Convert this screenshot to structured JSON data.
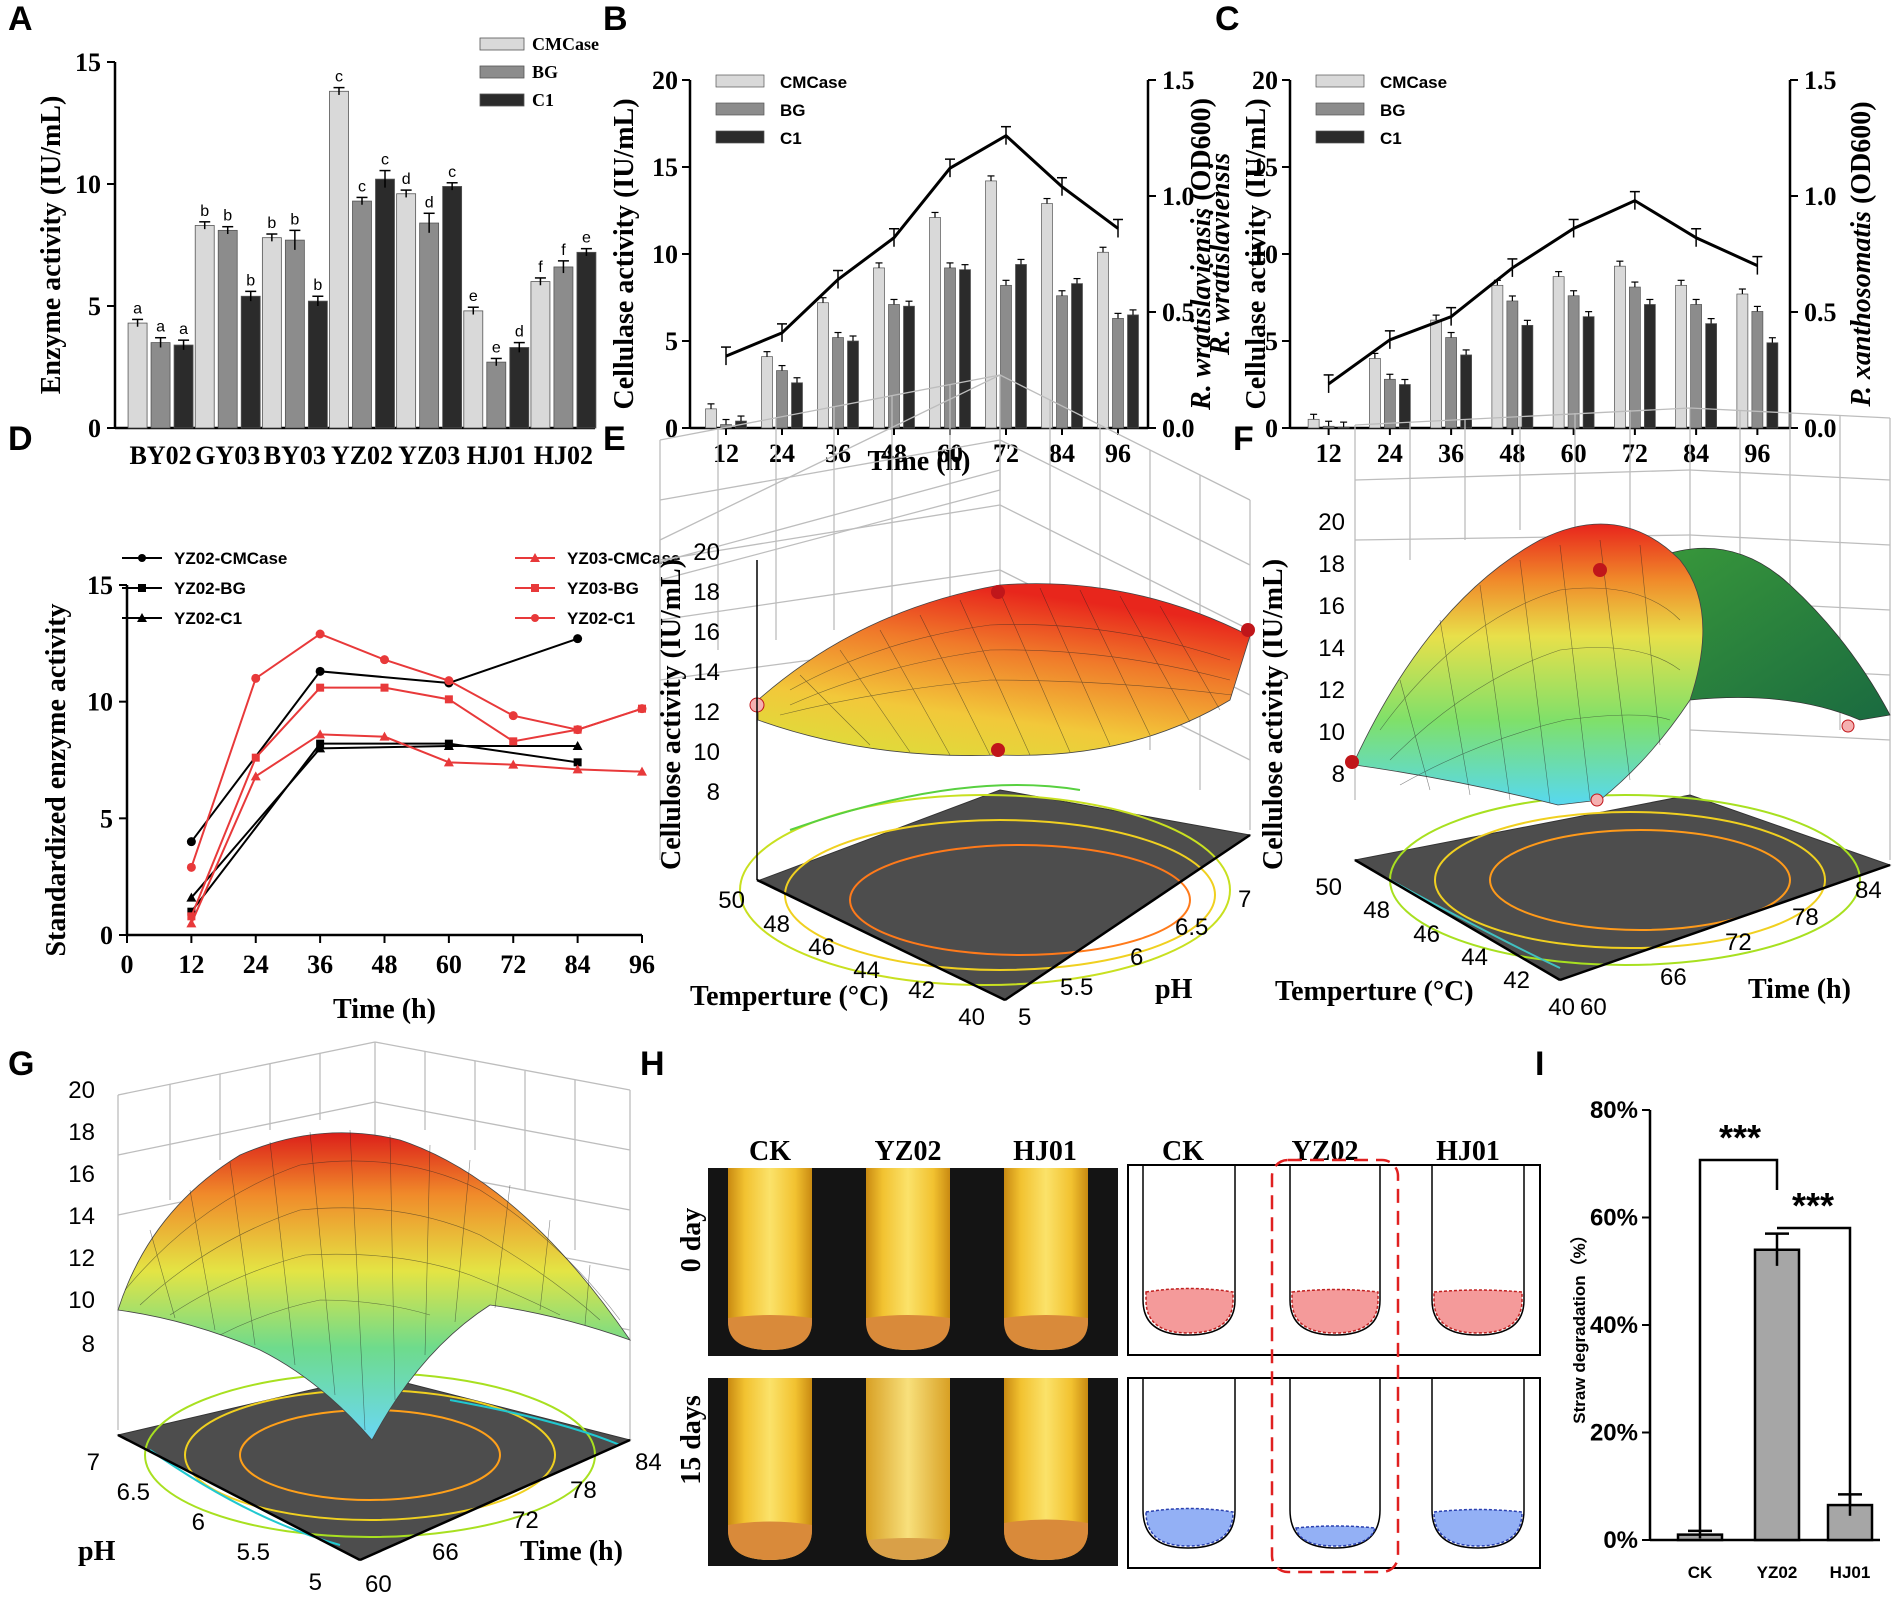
{
  "panels": {
    "A": "A",
    "B": "B",
    "C": "C",
    "D": "D",
    "E": "E",
    "F": "F",
    "G": "G",
    "H": "H",
    "I": "I"
  },
  "colors": {
    "cmcase": "#d9d9d9",
    "bg": "#8c8c8c",
    "c1": "#2b2b2b",
    "red": "#e8393a",
    "black": "#000000"
  },
  "chart_data": [
    {
      "id": "A",
      "type": "bar",
      "ylabel": "Enzyme activity (IU/mL)",
      "ylim": [
        0,
        15
      ],
      "yticks": [
        0,
        5,
        10,
        15
      ],
      "categories": [
        "BY02",
        "GY03",
        "BY03",
        "YZ02",
        "YZ03",
        "HJ01",
        "HJ02"
      ],
      "legend": [
        "CMCase",
        "BG",
        "C1"
      ],
      "series": [
        {
          "name": "CMCase",
          "values": [
            4.3,
            8.3,
            7.8,
            13.8,
            9.6,
            4.8,
            6.0
          ],
          "errors": [
            0.15,
            0.15,
            0.15,
            0.15,
            0.15,
            0.15,
            0.15
          ],
          "letters": [
            "a",
            "b",
            "b",
            "c",
            "d",
            "e",
            "f"
          ]
        },
        {
          "name": "BG",
          "values": [
            3.5,
            8.1,
            7.7,
            9.3,
            8.4,
            2.7,
            6.6
          ],
          "errors": [
            0.2,
            0.15,
            0.4,
            0.15,
            0.4,
            0.15,
            0.25
          ],
          "letters": [
            "a",
            "b",
            "b",
            "c",
            "d",
            "e",
            "f"
          ]
        },
        {
          "name": "C1",
          "values": [
            3.4,
            5.4,
            5.2,
            10.2,
            9.9,
            3.3,
            7.2
          ],
          "errors": [
            0.2,
            0.2,
            0.2,
            0.35,
            0.15,
            0.2,
            0.15
          ],
          "letters": [
            "a",
            "b",
            "b",
            "c",
            "c",
            "d",
            "e"
          ]
        }
      ]
    },
    {
      "id": "B",
      "type": "bar+line",
      "xlabel": "Time (h)",
      "ylabel": "Cellulase activity (IU/mL)",
      "y2label_italic": "R. wratislaviensis",
      "y2label_rest": " (OD600)",
      "ylim": [
        0,
        20
      ],
      "yticks": [
        0,
        5,
        10,
        15,
        20
      ],
      "y2lim": [
        0,
        1.5
      ],
      "y2ticks": [
        "0.0",
        "0.5",
        "1.0",
        "1.5"
      ],
      "categories": [
        "12",
        "24",
        "36",
        "48",
        "60",
        "72",
        "84",
        "96"
      ],
      "legend": [
        "CMCase",
        "BG",
        "C1"
      ],
      "series": [
        {
          "name": "CMCase",
          "values": [
            1.1,
            4.1,
            7.2,
            9.2,
            12.1,
            14.2,
            12.9,
            10.1
          ]
        },
        {
          "name": "BG",
          "values": [
            0.2,
            3.3,
            5.2,
            7.1,
            9.2,
            8.2,
            7.6,
            6.3
          ]
        },
        {
          "name": "C1",
          "values": [
            0.4,
            2.6,
            5.0,
            7.0,
            9.1,
            9.4,
            8.3,
            6.5
          ]
        }
      ],
      "line": {
        "name": "OD600",
        "values": [
          0.31,
          0.41,
          0.64,
          0.82,
          1.12,
          1.26,
          1.04,
          0.86
        ]
      }
    },
    {
      "id": "C",
      "type": "bar+line",
      "ylabel": "Cellulase activity (IU/mL)",
      "ylabel2_italic": "R. wratislaviensis",
      "y2label_italic": "P. xanthosomatis",
      "y2label_rest": " (OD600)",
      "ylim": [
        0,
        20
      ],
      "yticks": [
        0,
        5,
        10,
        15,
        20
      ],
      "y2lim": [
        0,
        1.5
      ],
      "y2ticks": [
        "0.0",
        "0.5",
        "1.0",
        "1.5"
      ],
      "categories": [
        "12",
        "24",
        "36",
        "48",
        "60",
        "72",
        "84",
        "96"
      ],
      "legend": [
        "CMCase",
        "BG",
        "C1"
      ],
      "series": [
        {
          "name": "CMCase",
          "values": [
            0.5,
            4.0,
            6.2,
            8.2,
            8.7,
            9.3,
            8.2,
            7.7
          ]
        },
        {
          "name": "BG",
          "values": [
            0.1,
            2.8,
            5.2,
            7.3,
            7.6,
            8.1,
            7.1,
            6.7
          ]
        },
        {
          "name": "C1",
          "values": [
            0.05,
            2.5,
            4.2,
            5.9,
            6.4,
            7.1,
            6.0,
            4.9
          ]
        }
      ],
      "line": {
        "name": "OD600",
        "values": [
          0.19,
          0.38,
          0.48,
          0.69,
          0.86,
          0.98,
          0.82,
          0.7
        ]
      }
    },
    {
      "id": "D",
      "type": "line",
      "xlabel": "Time (h)",
      "ylabel": "Standardized enzyme activity",
      "xlim": [
        0,
        96
      ],
      "xticks": [
        "0",
        "12",
        "24",
        "36",
        "48",
        "60",
        "72",
        "84",
        "96"
      ],
      "ylim": [
        0,
        15
      ],
      "yticks": [
        "0",
        "5",
        "10",
        "15"
      ],
      "series": [
        {
          "name": "YZ02-CMCase",
          "color": "black",
          "marker": "circle",
          "x": [
            12,
            36,
            60,
            84
          ],
          "y": [
            4.0,
            11.3,
            10.8,
            12.7
          ]
        },
        {
          "name": "YZ02-BG",
          "color": "black",
          "marker": "square",
          "x": [
            12,
            36,
            60,
            84
          ],
          "y": [
            1.0,
            8.2,
            8.2,
            7.4
          ]
        },
        {
          "name": "YZ02-C1",
          "color": "black",
          "marker": "triangle",
          "x": [
            12,
            36,
            60,
            84
          ],
          "y": [
            1.6,
            8.0,
            8.1,
            8.1
          ]
        },
        {
          "name": "YZ03-CMCase",
          "color": "red",
          "marker": "triangle",
          "x": [
            12,
            24,
            36,
            48,
            60,
            72,
            84,
            96
          ],
          "y": [
            0.5,
            6.8,
            8.6,
            8.5,
            7.4,
            7.3,
            7.1,
            7.0
          ]
        },
        {
          "name": "YZ03-BG",
          "color": "red",
          "marker": "square",
          "x": [
            12,
            24,
            36,
            48,
            60,
            72,
            84,
            96
          ],
          "y": [
            0.8,
            7.6,
            10.6,
            10.6,
            10.1,
            8.3,
            8.8,
            9.7
          ]
        },
        {
          "name": "YZ02-C1",
          "color": "red",
          "marker": "circle",
          "x": [
            12,
            24,
            36,
            48,
            60,
            72,
            84,
            96
          ],
          "y": [
            2.9,
            11.0,
            12.9,
            11.8,
            10.9,
            9.4,
            8.8,
            9.7
          ]
        }
      ]
    },
    {
      "id": "E",
      "type": "surface3d",
      "zlabel": "Cellulose activity (IU/mL)",
      "zticks": [
        "8",
        "10",
        "12",
        "14",
        "16",
        "18",
        "20"
      ],
      "xlabel": "Temperture (°C)",
      "xticks": [
        "50",
        "48",
        "46",
        "44",
        "42",
        "40"
      ],
      "ylabel": "pH",
      "yticks": [
        "5",
        "5.5",
        "6",
        "6.5",
        "7"
      ]
    },
    {
      "id": "F",
      "type": "surface3d",
      "zlabel": "Cellulose activity (IU/mL)",
      "zticks": [
        "8",
        "10",
        "12",
        "14",
        "16",
        "18",
        "20"
      ],
      "xlabel": "Temperture (°C)",
      "xticks": [
        "50",
        "48",
        "46",
        "44",
        "42",
        "40"
      ],
      "ylabel": "Time (h)",
      "yticks": [
        "60",
        "66",
        "72",
        "78",
        "84"
      ]
    },
    {
      "id": "G",
      "type": "surface3d",
      "zticks": [
        "8",
        "10",
        "12",
        "14",
        "16",
        "18",
        "20"
      ],
      "xlabel": "pH",
      "xticks": [
        "7",
        "6.5",
        "6",
        "5.5",
        "5"
      ],
      "ylabel": "Time (h)",
      "yticks": [
        "60",
        "66",
        "72",
        "78",
        "84"
      ]
    },
    {
      "id": "I",
      "type": "bar",
      "ylabel": "Straw degradation（%）",
      "yticks": [
        "0%",
        "20%",
        "40%",
        "60%",
        "80%"
      ],
      "ylim": [
        0,
        80
      ],
      "categories": [
        "CK",
        "YZ02",
        "HJ01"
      ],
      "values": [
        1.0,
        54.0,
        6.5
      ],
      "errors": [
        0.7,
        3.0,
        2.0
      ],
      "significance": [
        "***",
        "***"
      ]
    }
  ],
  "panelH": {
    "photo_columns": [
      "CK",
      "YZ02",
      "HJ01"
    ],
    "drawing_columns": [
      "CK",
      "YZ02",
      "HJ01"
    ],
    "rows": [
      "0 day",
      "15 days"
    ]
  }
}
